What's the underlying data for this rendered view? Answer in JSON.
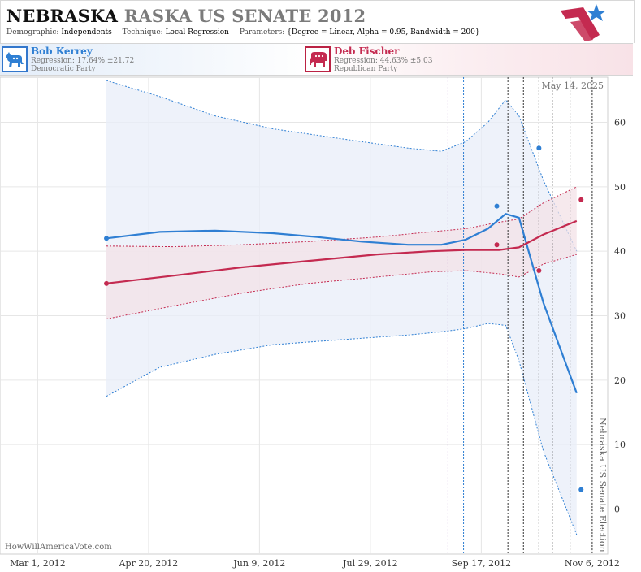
{
  "header": {
    "title_state": "NEBRASKA",
    "title_rest": "RASKA US SENATE 2012",
    "params": [
      {
        "label": "Demographic:",
        "value": "Independents"
      },
      {
        "label": "Technique:",
        "value": "Local Regression"
      },
      {
        "label": "Parameters:",
        "value": "{Degree = Linear, Alpha = 0.95, Bandwidth = 200}"
      }
    ]
  },
  "candidates": {
    "dem": {
      "name": "Bob Kerrey",
      "regression": "Regression: 17.64% ±21.72",
      "party": "Democratic Party",
      "color": "#2f7fd3"
    },
    "rep": {
      "name": "Deb Fischer",
      "regression": "Regression: 44.63% ±5.03",
      "party": "Republican Party",
      "color": "#c42a50"
    }
  },
  "watermark": "HowWillAmericaVote.com",
  "chart_data": {
    "type": "line",
    "today_label": "May 14, 2025",
    "event_label": "Nebraska US Senate Election",
    "x_ticks": [
      "Mar 1, 2012",
      "Apr 20, 2012",
      "Jun 9, 2012",
      "Jul 29, 2012",
      "Sep 17, 2012",
      "Nov 6, 2012"
    ],
    "x_range": [
      "2012-02-13",
      "2012-11-13"
    ],
    "y_ticks": [
      0,
      10,
      20,
      30,
      40,
      50,
      60
    ],
    "ylim": [
      -7,
      67
    ],
    "grid": true,
    "vertical_markers": [
      {
        "date": "2012-09-02",
        "color": "#8844aa"
      },
      {
        "date": "2012-09-09",
        "color": "#2f7fd3"
      },
      {
        "date": "2012-09-29",
        "color": "#333333"
      },
      {
        "date": "2012-10-06",
        "color": "#333333"
      },
      {
        "date": "2012-10-13",
        "color": "#333333"
      },
      {
        "date": "2012-10-19",
        "color": "#333333"
      },
      {
        "date": "2012-10-27",
        "color": "#333333"
      },
      {
        "date": "2012-11-06",
        "color": "#333333"
      }
    ],
    "series": [
      {
        "name": "Bob Kerrey",
        "color": "#2f7fd3",
        "band_color": "#e8eef8",
        "x": [
          "2012-04-01",
          "2012-04-25",
          "2012-05-20",
          "2012-06-15",
          "2012-07-05",
          "2012-07-25",
          "2012-08-15",
          "2012-08-30",
          "2012-09-10",
          "2012-09-20",
          "2012-09-28",
          "2012-10-04",
          "2012-10-15",
          "2012-10-30"
        ],
        "y": [
          42,
          43,
          43.2,
          42.8,
          42.2,
          41.5,
          41,
          41,
          41.8,
          43.5,
          45.8,
          45.2,
          32,
          18
        ],
        "upper": [
          66.5,
          64,
          61,
          59,
          58,
          57,
          56,
          55.5,
          57,
          60,
          63.5,
          61,
          51,
          40
        ],
        "lower": [
          17.5,
          22,
          24,
          25.5,
          26,
          26.5,
          27,
          27.5,
          28,
          28.8,
          28.5,
          23,
          9,
          -4
        ],
        "points": [
          {
            "x": "2012-04-01",
            "y": 42
          },
          {
            "x": "2012-09-24",
            "y": 47
          },
          {
            "x": "2012-10-13",
            "y": 56
          },
          {
            "x": "2012-11-01",
            "y": 3
          }
        ]
      },
      {
        "name": "Deb Fischer",
        "color": "#c42a50",
        "band_color": "#f3e2e7",
        "x": [
          "2012-04-01",
          "2012-05-01",
          "2012-06-01",
          "2012-07-01",
          "2012-08-01",
          "2012-08-25",
          "2012-09-10",
          "2012-09-25",
          "2012-10-04",
          "2012-10-15",
          "2012-10-30"
        ],
        "y": [
          35,
          36.2,
          37.5,
          38.5,
          39.5,
          40,
          40.2,
          40.2,
          40.6,
          42.6,
          44.7
        ],
        "upper": [
          40.8,
          40.7,
          41,
          41.5,
          42.2,
          43,
          43.5,
          44.5,
          45,
          47.5,
          50
        ],
        "lower": [
          29.5,
          31.5,
          33.5,
          35,
          36,
          36.8,
          37,
          36.5,
          36,
          38,
          39.5
        ],
        "points": [
          {
            "x": "2012-04-01",
            "y": 35
          },
          {
            "x": "2012-09-24",
            "y": 41
          },
          {
            "x": "2012-10-13",
            "y": 37
          },
          {
            "x": "2012-11-01",
            "y": 48
          }
        ]
      }
    ]
  }
}
